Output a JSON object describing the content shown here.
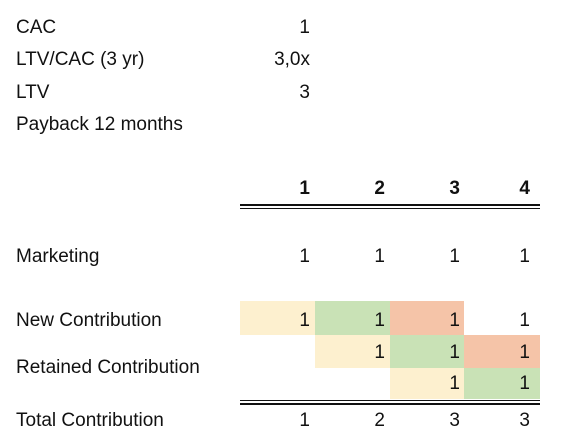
{
  "metrics": [
    {
      "label": "CAC",
      "value": "1"
    },
    {
      "label": "LTV/CAC (3 yr)",
      "value": "3,0x"
    },
    {
      "label": "LTV",
      "value": "3"
    },
    {
      "label": "Payback 12 months",
      "value": ""
    }
  ],
  "periods": [
    "1",
    "2",
    "3",
    "4"
  ],
  "rows": {
    "marketing": {
      "label": "Marketing",
      "values": [
        "1",
        "1",
        "1",
        "1"
      ]
    },
    "new_contribution": {
      "label": "New Contribution",
      "values": [
        "1",
        "1",
        "1",
        "1"
      ]
    },
    "retained_contribution": {
      "label": "Retained Contribution",
      "values": [
        "",
        "1",
        "1",
        "1"
      ]
    },
    "retained_contribution_2": {
      "values": [
        "",
        "",
        "1",
        "1"
      ]
    },
    "total_contribution": {
      "label": "Total Contribution",
      "values": [
        "1",
        "2",
        "3",
        "3"
      ]
    }
  },
  "colors": {
    "cohort_start": "#fdf0cf",
    "cohort_growth": "#c9e2b6",
    "cohort_peak": "#f5c4a8"
  }
}
